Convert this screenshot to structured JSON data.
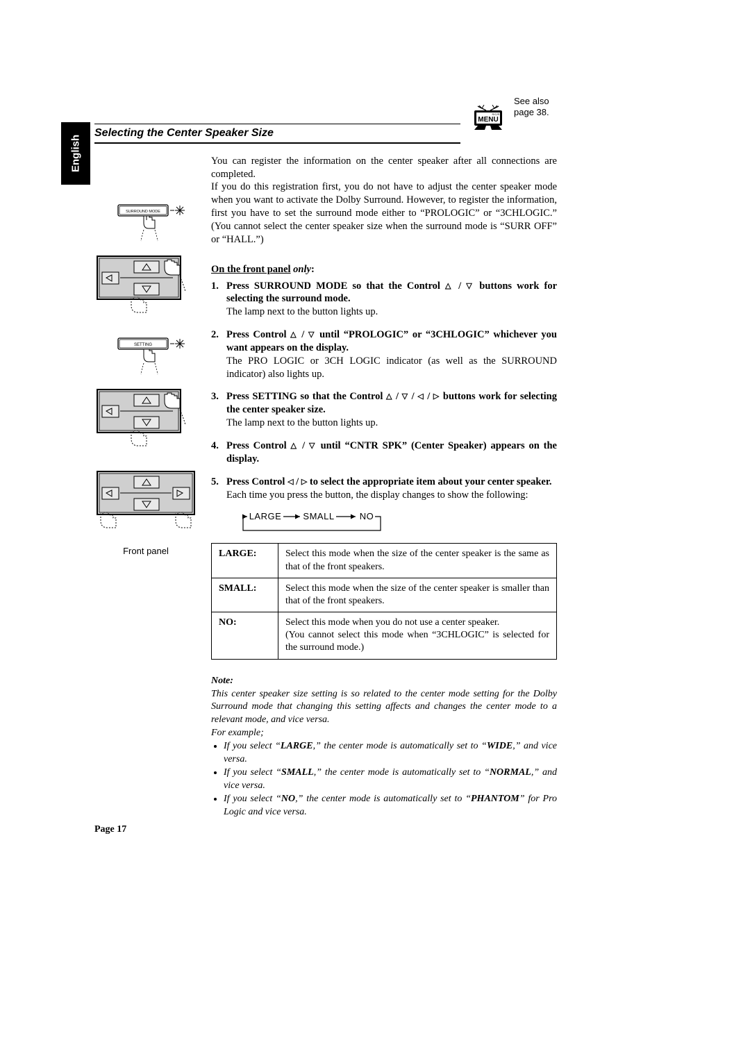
{
  "language_tab": "English",
  "see_also": {
    "line1": "See also",
    "line2": "page 38."
  },
  "tv_label": "MENU",
  "section_title": "Selecting the Center Speaker Size",
  "intro_paragraph": "You can register the information on the center speaker after all connections are completed.\nIf you do this registration first, you do not have to adjust the center speaker mode when you want to activate the Dolby Surround. However, to register the information, first you have to set the surround mode either to “PROLOGIC” or “3CHLOGIC.” (You cannot select the center speaker size when the surround mode is “SURR OFF” or “HALL.”)",
  "on_front_label": {
    "ul": "On the front panel",
    "it": " only",
    "tail": ":"
  },
  "steps": [
    {
      "num": "1.",
      "lead_pre": "Press SURROUND MODE so that the Control ",
      "lead_post": " buttons work for selecting the surround mode.",
      "glyphs": "up_down",
      "sub": "The lamp next to the button lights up."
    },
    {
      "num": "2.",
      "lead_pre": "Press Control ",
      "lead_post": " until “PROLOGIC” or “3CHLOGIC” whichever you want appears on the display.",
      "glyphs": "up_down",
      "sub": "The PRO LOGIC or 3CH LOGIC indicator (as well as the SURROUND indicator) also lights up."
    },
    {
      "num": "3.",
      "lead_pre": "Press SETTING so that the Control ",
      "lead_post": " buttons work for selecting the center speaker size.",
      "glyphs": "all4",
      "sub": "The lamp next to the button lights up."
    },
    {
      "num": "4.",
      "lead_pre": "Press Control ",
      "lead_post": " until “CNTR SPK” (Center Speaker) appears on the display.",
      "glyphs": "up_down",
      "sub": ""
    },
    {
      "num": "5.",
      "lead_pre": "Press Control ",
      "lead_post": " to select the appropriate item about your center speaker.",
      "glyphs": "left_right",
      "sub": "Each time you press the button, the display changes to show the following:"
    }
  ],
  "cycle": {
    "a": "LARGE",
    "b": "SMALL",
    "c": "NO"
  },
  "options_table": {
    "rows": [
      {
        "k": "LARGE:",
        "v": "Select this mode when the size of the center speaker is the same as that of the front speakers."
      },
      {
        "k": "SMALL:",
        "v": "Select this mode when the size of the center speaker is smaller than that of the front speakers."
      },
      {
        "k": "NO:",
        "v": "Select this mode when you do not use a center speaker.\n(You cannot select this mode when “3CHLOGIC” is selected for the surround mode.)"
      }
    ]
  },
  "note": {
    "header": "Note:",
    "body": "This center speaker size setting is so related to the center mode setting for the Dolby Surround mode that changing this setting affects and changes the center mode to a relevant mode, and vice versa.\nFor example;",
    "bullets": [
      {
        "pre": "If you select “",
        "b": "LARGE",
        "mid": ",” the center mode is automatically set to “",
        "b2": "WIDE",
        "post": ",” and vice versa."
      },
      {
        "pre": "If you select “",
        "b": "SMALL",
        "mid": ",” the center mode is automatically set to “",
        "b2": "NORMAL",
        "post": ",” and vice versa."
      },
      {
        "pre": "If you select “",
        "b": "NO",
        "mid": ",” the center mode is automatically set to “",
        "b2": "PHANTOM",
        "post": "” for Pro Logic and vice versa."
      }
    ]
  },
  "front_panel_caption": "Front panel",
  "page_number": "Page 17",
  "btn_surround": "SURROUND MODE",
  "btn_setting": "SETTING",
  "colors": {
    "black": "#000000",
    "white": "#ffffff",
    "panel_fill": "#cfcfcf",
    "panel_light": "#e9e9e9"
  }
}
